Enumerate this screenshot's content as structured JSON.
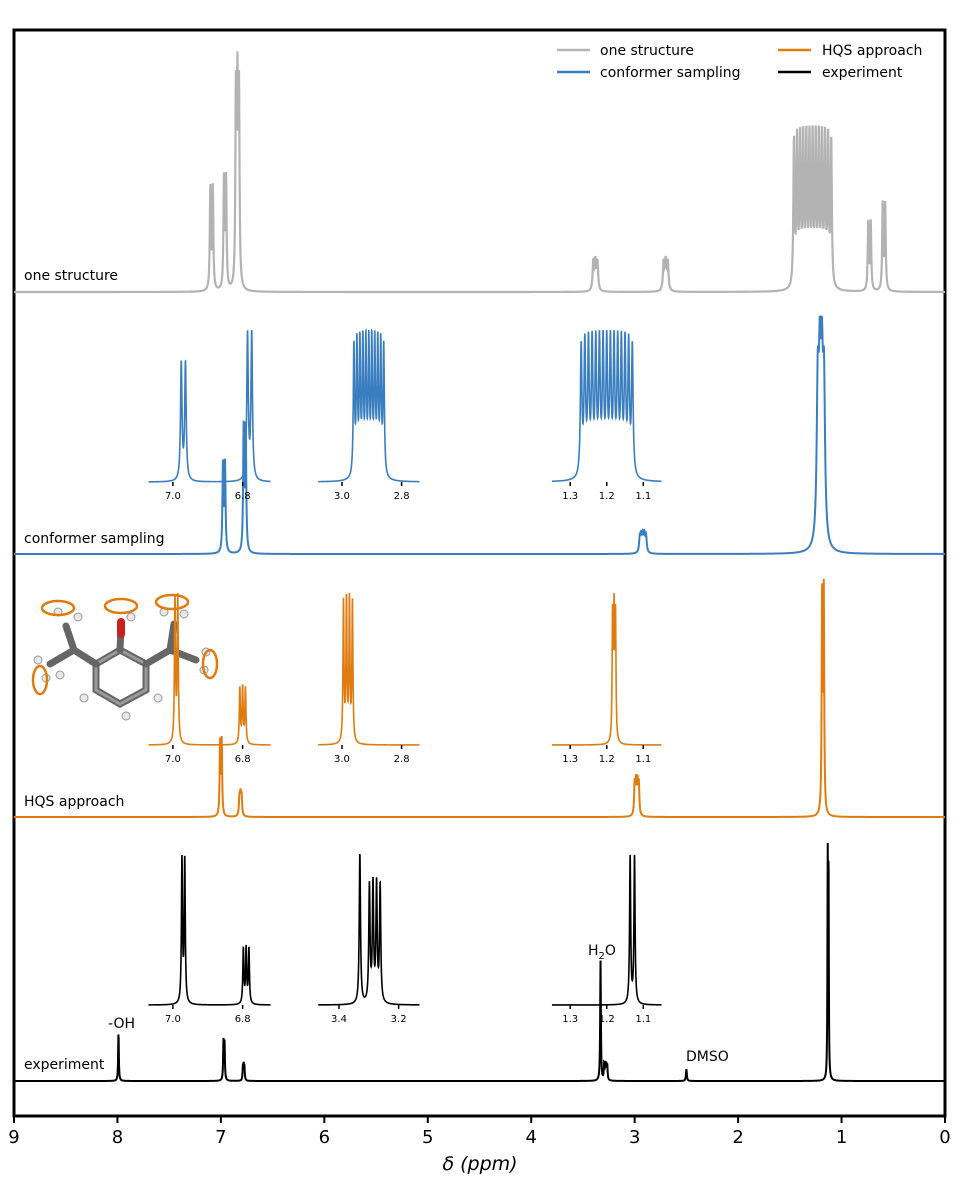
{
  "chart_data": {
    "type": "line",
    "xlabel": "δ (ppm)",
    "xlim": [
      9,
      0
    ],
    "x_ticks": [
      "9",
      "8",
      "7",
      "6",
      "5",
      "4",
      "3",
      "2",
      "1",
      "0"
    ],
    "legend": {
      "placement": "top-right",
      "entries": [
        {
          "name": "one structure",
          "color": "#b3b3b3"
        },
        {
          "name": "HQS approach",
          "color": "#e07b10"
        },
        {
          "name": "conformer sampling",
          "color": "#3a7ebf"
        },
        {
          "name": "experiment",
          "color": "#000000"
        }
      ]
    },
    "panels": [
      {
        "id": "one",
        "label": "one structure",
        "color": "#b3b3b3",
        "peaks": [
          {
            "ppm": 7.09,
            "h": 0.45,
            "mult": [
              -0.012,
              0.012
            ],
            "w": 0.006
          },
          {
            "ppm": 6.96,
            "h": 0.5,
            "mult": [
              -0.01,
              0.01
            ],
            "w": 0.006
          },
          {
            "ppm": 6.84,
            "h": 1.0,
            "mult": [
              -0.015,
              0,
              0.015
            ],
            "w": 0.006
          },
          {
            "ppm": 3.38,
            "h": 0.15,
            "mult": [
              -0.02,
              0,
              0.02
            ],
            "w": 0.008
          },
          {
            "ppm": 2.7,
            "h": 0.15,
            "mult": [
              -0.02,
              0,
              0.02
            ],
            "w": 0.008
          },
          {
            "ppm": 1.28,
            "h": 0.7,
            "mult": [
              -0.18,
              -0.15,
              -0.12,
              -0.09,
              -0.06,
              -0.03,
              0,
              0.03,
              0.06,
              0.09,
              0.12,
              0.15,
              0.18
            ],
            "w": 0.007
          },
          {
            "ppm": 0.73,
            "h": 0.3,
            "mult": [
              -0.012,
              0.012
            ],
            "w": 0.006
          },
          {
            "ppm": 0.59,
            "h": 0.38,
            "mult": [
              -0.012,
              0.012
            ],
            "w": 0.006
          }
        ],
        "insets": []
      },
      {
        "id": "conf",
        "label": "conformer sampling",
        "color": "#3a7ebf",
        "peaks": [
          {
            "ppm": 6.97,
            "h": 0.4,
            "mult": [
              -0.01,
              0.01
            ],
            "w": 0.006
          },
          {
            "ppm": 6.77,
            "h": 0.56,
            "mult": [
              -0.01,
              0.01
            ],
            "w": 0.006
          },
          {
            "ppm": 2.92,
            "h": 0.1,
            "mult": [
              -0.03,
              -0.015,
              0,
              0.015,
              0.03
            ],
            "w": 0.008
          },
          {
            "ppm": 1.2,
            "h": 1.0,
            "mult": [
              -0.03,
              -0.01,
              0.01,
              0.03
            ],
            "w": 0.012
          }
        ],
        "insets": [
          {
            "ticks": [
              "7.0",
              "6.8"
            ],
            "tick_vals": [
              7.0,
              6.8
            ],
            "xlim": [
              7.07,
              6.72
            ],
            "peaks": [
              {
                "ppm": 6.97,
                "h": 0.8,
                "mult": [
                  -0.006,
                  0.006
                ],
                "w": 0.0025
              },
              {
                "ppm": 6.78,
                "h": 1.0,
                "mult": [
                  -0.006,
                  0.006
                ],
                "w": 0.0025
              }
            ]
          },
          {
            "ticks": [
              "3.0",
              "2.8"
            ],
            "tick_vals": [
              3.0,
              2.8
            ],
            "xlim": [
              3.08,
              2.74
            ],
            "peaks": [
              {
                "ppm": 2.91,
                "h": 1.0,
                "mult": [
                  -0.05,
                  -0.04,
                  -0.03,
                  -0.02,
                  -0.01,
                  0,
                  0.01,
                  0.02,
                  0.03,
                  0.04,
                  0.05
                ],
                "w": 0.0025
              }
            ]
          },
          {
            "ticks": [
              "1.3",
              "1.2",
              "1.1"
            ],
            "tick_vals": [
              1.3,
              1.2,
              1.1
            ],
            "xlim": [
              1.35,
              1.05
            ],
            "peaks": [
              {
                "ppm": 1.2,
                "h": 1.0,
                "mult": [
                  -0.07,
                  -0.06,
                  -0.05,
                  -0.04,
                  -0.03,
                  -0.02,
                  -0.01,
                  0,
                  0.01,
                  0.02,
                  0.03,
                  0.04,
                  0.05,
                  0.06,
                  0.07
                ],
                "w": 0.0025
              }
            ]
          }
        ]
      },
      {
        "id": "hqs",
        "label": "HQS approach",
        "color": "#e07b10",
        "peaks": [
          {
            "ppm": 7.0,
            "h": 0.34,
            "mult": [
              -0.008,
              0.008
            ],
            "w": 0.005
          },
          {
            "ppm": 6.81,
            "h": 0.12,
            "mult": [
              -0.01,
              0,
              0.01
            ],
            "w": 0.006
          },
          {
            "ppm": 2.98,
            "h": 0.18,
            "mult": [
              -0.02,
              -0.007,
              0.007,
              0.02
            ],
            "w": 0.006
          },
          {
            "ppm": 1.18,
            "h": 1.0,
            "mult": [
              -0.008,
              0.008
            ],
            "w": 0.005
          }
        ],
        "insets": [
          {
            "ticks": [
              "7.0",
              "6.8"
            ],
            "tick_vals": [
              7.0,
              6.8
            ],
            "xlim": [
              7.07,
              6.72
            ],
            "peaks": [
              {
                "ppm": 6.99,
                "h": 1.0,
                "mult": [
                  -0.004,
                  0.004
                ],
                "w": 0.0018
              },
              {
                "ppm": 6.8,
                "h": 0.4,
                "mult": [
                  -0.008,
                  0,
                  0.008
                ],
                "w": 0.0018
              }
            ]
          },
          {
            "ticks": [
              "3.0",
              "2.8"
            ],
            "tick_vals": [
              3.0,
              2.8
            ],
            "xlim": [
              3.08,
              2.74
            ],
            "peaks": [
              {
                "ppm": 2.98,
                "h": 1.0,
                "mult": [
                  -0.015,
                  -0.005,
                  0.005,
                  0.015
                ],
                "w": 0.002
              }
            ]
          },
          {
            "ticks": [
              "1.3",
              "1.2",
              "1.1"
            ],
            "tick_vals": [
              1.3,
              1.2,
              1.1
            ],
            "xlim": [
              1.35,
              1.05
            ],
            "peaks": [
              {
                "ppm": 1.18,
                "h": 1.0,
                "mult": [
                  -0.004,
                  0,
                  0.004
                ],
                "w": 0.0015
              }
            ]
          }
        ]
      },
      {
        "id": "exp",
        "label": "experiment",
        "color": "#000000",
        "peaks": [
          {
            "ppm": 7.99,
            "h": 0.2,
            "mult": [
              0
            ],
            "w": 0.004
          },
          {
            "ppm": 6.97,
            "h": 0.18,
            "mult": [
              -0.005,
              0.005
            ],
            "w": 0.004
          },
          {
            "ppm": 6.78,
            "h": 0.08,
            "mult": [
              -0.007,
              0,
              0.007
            ],
            "w": 0.004
          },
          {
            "ppm": 3.33,
            "h": 0.5,
            "mult": [
              0
            ],
            "w": 0.004
          },
          {
            "ppm": 3.28,
            "h": 0.08,
            "mult": [
              -0.015,
              -0.005,
              0.005,
              0.015
            ],
            "w": 0.004
          },
          {
            "ppm": 2.5,
            "h": 0.05,
            "mult": [
              0
            ],
            "w": 0.005
          },
          {
            "ppm": 1.13,
            "h": 1.0,
            "mult": [
              -0.004,
              0.004
            ],
            "w": 0.003
          }
        ],
        "insets": [
          {
            "ticks": [
              "7.0",
              "6.8"
            ],
            "tick_vals": [
              7.0,
              6.8
            ],
            "xlim": [
              7.07,
              6.72
            ],
            "peaks": [
              {
                "ppm": 6.97,
                "h": 1.0,
                "mult": [
                  -0.004,
                  0.004
                ],
                "w": 0.0018
              },
              {
                "ppm": 6.79,
                "h": 0.4,
                "mult": [
                  -0.008,
                  0,
                  0.008
                ],
                "w": 0.0018
              }
            ]
          },
          {
            "ticks": [
              "3.4",
              "3.2"
            ],
            "tick_vals": [
              3.4,
              3.2
            ],
            "xlim": [
              3.47,
              3.13
            ],
            "peaks": [
              {
                "ppm": 3.33,
                "h": 1.0,
                "mult": [
                  0
                ],
                "w": 0.0025
              },
              {
                "ppm": 3.28,
                "h": 0.85,
                "mult": [
                  -0.018,
                  -0.006,
                  0.006,
                  0.018
                ],
                "w": 0.0025
              }
            ]
          },
          {
            "ticks": [
              "1.3",
              "1.2",
              "1.1"
            ],
            "tick_vals": [
              1.3,
              1.2,
              1.1
            ],
            "xlim": [
              1.35,
              1.05
            ],
            "peaks": [
              {
                "ppm": 1.13,
                "h": 1.0,
                "mult": [
                  -0.006,
                  0.006
                ],
                "w": 0.0018
              }
            ]
          }
        ],
        "annotations": [
          {
            "text": "-OH",
            "ppm": 7.99
          },
          {
            "text": "DMSO",
            "ppm": 2.5
          }
        ],
        "water_label": {
          "base": "H",
          "sub": "2",
          "tail": "O",
          "ppm": 3.33
        }
      }
    ],
    "inset_placement": [
      7.7,
      6.52,
      6.06,
      5.08,
      3.8,
      2.74,
      2.06,
      1.0
    ]
  }
}
